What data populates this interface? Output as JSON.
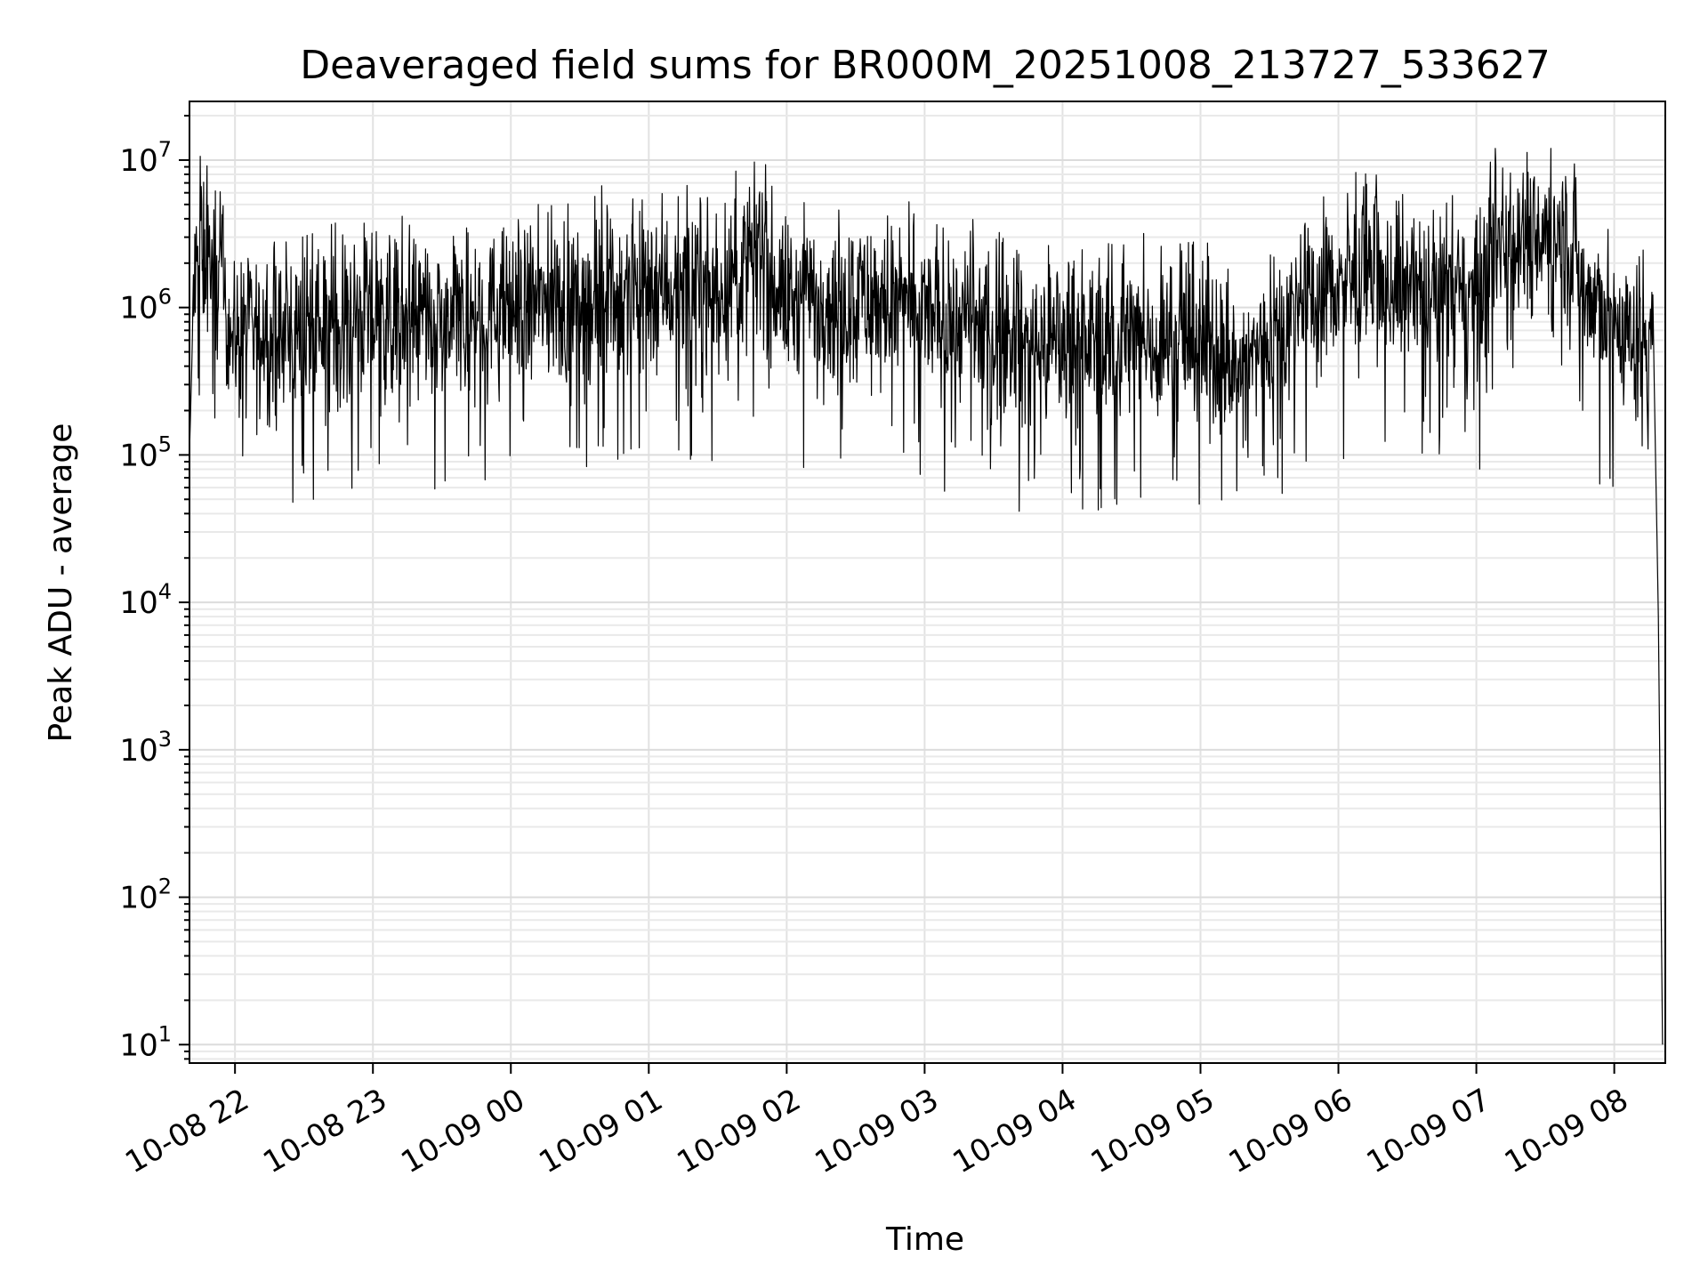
{
  "chart_data": {
    "type": "line",
    "title": "Deaveraged field sums for BR000M_20251008_213727_533627",
    "xlabel": "Time",
    "ylabel": "Peak ADU - average",
    "yscale": "log",
    "ylim": [
      7.5,
      25000000
    ],
    "xlim_hours": [
      -0.33,
      10.37
    ],
    "grid": true,
    "line_color": "#000000",
    "x_ticks": [
      {
        "label": "10-08 22",
        "hour": 0
      },
      {
        "label": "10-08 23",
        "hour": 1
      },
      {
        "label": "10-09 00",
        "hour": 2
      },
      {
        "label": "10-09 01",
        "hour": 3
      },
      {
        "label": "10-09 02",
        "hour": 4
      },
      {
        "label": "10-09 03",
        "hour": 5
      },
      {
        "label": "10-09 04",
        "hour": 6
      },
      {
        "label": "10-09 05",
        "hour": 7
      },
      {
        "label": "10-09 06",
        "hour": 8
      },
      {
        "label": "10-09 07",
        "hour": 9
      },
      {
        "label": "10-09 08",
        "hour": 10
      }
    ],
    "y_ticks": [
      {
        "base": "10",
        "exp": "1",
        "value": 10
      },
      {
        "base": "10",
        "exp": "2",
        "value": 100
      },
      {
        "base": "10",
        "exp": "3",
        "value": 1000
      },
      {
        "base": "10",
        "exp": "4",
        "value": 10000
      },
      {
        "base": "10",
        "exp": "5",
        "value": 100000
      },
      {
        "base": "10",
        "exp": "6",
        "value": 1000000
      },
      {
        "base": "10",
        "exp": "7",
        "value": 10000000
      }
    ],
    "series": [
      {
        "name": "deaveraged field sum",
        "x_hours": [
          -0.33,
          -0.3,
          -0.25,
          -0.1,
          0.0,
          0.5,
          1.0,
          1.5,
          2.0,
          2.5,
          3.0,
          3.5,
          3.8,
          4.0,
          4.5,
          5.0,
          5.5,
          5.8,
          6.0,
          6.5,
          7.0,
          7.3,
          7.5,
          8.0,
          8.5,
          9.0,
          9.2,
          9.5,
          9.6,
          9.8,
          10.0,
          10.2,
          10.28,
          10.32,
          10.35
        ],
        "values": [
          100000,
          1200000,
          2500000,
          1500000,
          600000,
          700000,
          900000,
          700000,
          1000000,
          1100000,
          1500000,
          1300000,
          2200000,
          1100000,
          1200000,
          900000,
          700000,
          550000,
          600000,
          600000,
          550000,
          350000,
          700000,
          1500000,
          1400000,
          1100000,
          3500000,
          3000000,
          4000000,
          1200000,
          800000,
          500000,
          1000000,
          8000,
          10
        ]
      }
    ]
  }
}
